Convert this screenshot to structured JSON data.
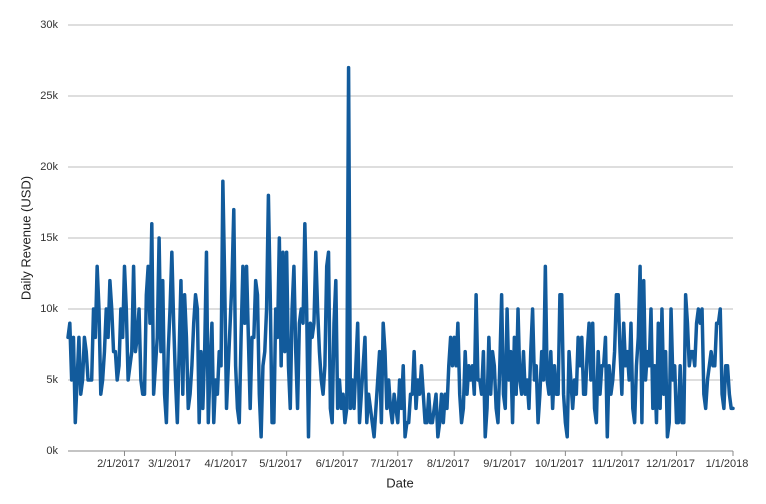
{
  "chart_data": {
    "type": "line",
    "x_label": "Date",
    "y_label": "Daily Revenue (USD)",
    "x": [
      "1/1/2017",
      "1/2/2017",
      "1/3/2017",
      "1/4/2017",
      "1/5/2017",
      "1/6/2017",
      "1/7/2017",
      "1/8/2017",
      "1/9/2017",
      "1/10/2017",
      "1/11/2017",
      "1/12/2017",
      "1/13/2017",
      "1/14/2017",
      "1/15/2017",
      "1/16/2017",
      "1/17/2017",
      "1/18/2017",
      "1/19/2017",
      "1/20/2017",
      "1/21/2017",
      "1/22/2017",
      "1/23/2017",
      "1/24/2017",
      "1/25/2017",
      "1/26/2017",
      "1/27/2017",
      "1/28/2017",
      "1/29/2017",
      "1/30/2017",
      "1/31/2017",
      "2/1/2017",
      "2/2/2017",
      "2/3/2017",
      "2/4/2017",
      "2/5/2017",
      "2/6/2017",
      "2/7/2017",
      "2/8/2017",
      "2/9/2017",
      "2/10/2017",
      "2/11/2017",
      "2/12/2017",
      "2/13/2017",
      "2/14/2017",
      "2/15/2017",
      "2/16/2017",
      "2/17/2017",
      "2/18/2017",
      "2/19/2017",
      "2/20/2017",
      "2/21/2017",
      "2/22/2017",
      "2/23/2017",
      "2/24/2017",
      "2/25/2017",
      "2/26/2017",
      "2/27/2017",
      "2/28/2017",
      "3/1/2017",
      "3/2/2017",
      "3/3/2017",
      "3/4/2017",
      "3/5/2017",
      "3/6/2017",
      "3/7/2017",
      "3/8/2017",
      "3/9/2017",
      "3/10/2017",
      "3/11/2017",
      "3/12/2017",
      "3/13/2017",
      "3/14/2017",
      "3/15/2017",
      "3/16/2017",
      "3/17/2017",
      "3/18/2017",
      "3/19/2017",
      "3/20/2017",
      "3/21/2017",
      "3/22/2017",
      "3/23/2017",
      "3/24/2017",
      "3/25/2017",
      "3/26/2017",
      "3/27/2017",
      "3/28/2017",
      "3/29/2017",
      "3/30/2017",
      "3/31/2017",
      "4/1/2017",
      "4/2/2017",
      "4/3/2017",
      "4/4/2017",
      "4/5/2017",
      "4/6/2017",
      "4/7/2017",
      "4/8/2017",
      "4/9/2017",
      "4/10/2017",
      "4/11/2017",
      "4/12/2017",
      "4/13/2017",
      "4/14/2017",
      "4/15/2017",
      "4/16/2017",
      "4/17/2017",
      "4/18/2017",
      "4/19/2017",
      "4/20/2017",
      "4/21/2017",
      "4/22/2017",
      "4/23/2017",
      "4/24/2017",
      "4/25/2017",
      "4/26/2017",
      "4/27/2017",
      "4/28/2017",
      "4/29/2017",
      "4/30/2017",
      "5/1/2017",
      "5/2/2017",
      "5/3/2017",
      "5/4/2017",
      "5/5/2017",
      "5/6/2017",
      "5/7/2017",
      "5/8/2017",
      "5/9/2017",
      "5/10/2017",
      "5/11/2017",
      "5/12/2017",
      "5/13/2017",
      "5/14/2017",
      "5/15/2017",
      "5/16/2017",
      "5/17/2017",
      "5/18/2017",
      "5/19/2017",
      "5/20/2017",
      "5/21/2017",
      "5/22/2017",
      "5/23/2017",
      "5/24/2017",
      "5/25/2017",
      "5/26/2017",
      "5/27/2017",
      "5/28/2017",
      "5/29/2017",
      "5/30/2017",
      "5/31/2017",
      "6/1/2017",
      "6/2/2017",
      "6/3/2017",
      "6/4/2017",
      "6/5/2017",
      "6/6/2017",
      "6/7/2017",
      "6/8/2017",
      "6/9/2017",
      "6/10/2017",
      "6/11/2017",
      "6/12/2017",
      "6/13/2017",
      "6/14/2017",
      "6/15/2017",
      "6/16/2017",
      "6/17/2017",
      "6/18/2017",
      "6/19/2017",
      "6/20/2017",
      "6/21/2017",
      "6/22/2017",
      "6/23/2017",
      "6/24/2017",
      "6/25/2017",
      "6/26/2017",
      "6/27/2017",
      "6/28/2017",
      "6/29/2017",
      "6/30/2017",
      "7/1/2017",
      "7/2/2017",
      "7/3/2017",
      "7/4/2017",
      "7/5/2017",
      "7/6/2017",
      "7/7/2017",
      "7/8/2017",
      "7/9/2017",
      "7/10/2017",
      "7/11/2017",
      "7/12/2017",
      "7/13/2017",
      "7/14/2017",
      "7/15/2017",
      "7/16/2017",
      "7/17/2017",
      "7/18/2017",
      "7/19/2017",
      "7/20/2017",
      "7/21/2017",
      "7/22/2017",
      "7/23/2017",
      "7/24/2017",
      "7/25/2017",
      "7/26/2017",
      "7/27/2017",
      "7/28/2017",
      "7/29/2017",
      "7/30/2017",
      "7/31/2017",
      "8/1/2017",
      "8/2/2017",
      "8/3/2017",
      "8/4/2017",
      "8/5/2017",
      "8/6/2017",
      "8/7/2017",
      "8/8/2017",
      "8/9/2017",
      "8/10/2017",
      "8/11/2017",
      "8/12/2017",
      "8/13/2017",
      "8/14/2017",
      "8/15/2017",
      "8/16/2017",
      "8/17/2017",
      "8/18/2017",
      "8/19/2017",
      "8/20/2017",
      "8/21/2017",
      "8/22/2017",
      "8/23/2017",
      "8/24/2017",
      "8/25/2017",
      "8/26/2017",
      "8/27/2017",
      "8/28/2017",
      "8/29/2017",
      "8/30/2017",
      "8/31/2017",
      "9/1/2017",
      "9/2/2017",
      "9/3/2017",
      "9/4/2017",
      "9/5/2017",
      "9/6/2017",
      "9/7/2017",
      "9/8/2017",
      "9/9/2017",
      "9/10/2017",
      "9/11/2017",
      "9/12/2017",
      "9/13/2017",
      "9/14/2017",
      "9/15/2017",
      "9/16/2017",
      "9/17/2017",
      "9/18/2017",
      "9/19/2017",
      "9/20/2017",
      "9/21/2017",
      "9/22/2017",
      "9/23/2017",
      "9/24/2017",
      "9/25/2017",
      "9/26/2017",
      "9/27/2017",
      "9/28/2017",
      "9/29/2017",
      "9/30/2017",
      "10/1/2017",
      "10/2/2017",
      "10/3/2017",
      "10/4/2017",
      "10/5/2017",
      "10/6/2017",
      "10/7/2017",
      "10/8/2017",
      "10/9/2017",
      "10/10/2017",
      "10/11/2017",
      "10/12/2017",
      "10/13/2017",
      "10/14/2017",
      "10/15/2017",
      "10/16/2017",
      "10/17/2017",
      "10/18/2017",
      "10/19/2017",
      "10/20/2017",
      "10/21/2017",
      "10/22/2017",
      "10/23/2017",
      "10/24/2017",
      "10/25/2017",
      "10/26/2017",
      "10/27/2017",
      "10/28/2017",
      "10/29/2017",
      "10/30/2017",
      "10/31/2017",
      "11/1/2017",
      "11/2/2017",
      "11/3/2017",
      "11/4/2017",
      "11/5/2017",
      "11/6/2017",
      "11/7/2017",
      "11/8/2017",
      "11/9/2017",
      "11/10/2017",
      "11/11/2017",
      "11/12/2017",
      "11/13/2017",
      "11/14/2017",
      "11/15/2017",
      "11/16/2017",
      "11/17/2017",
      "11/18/2017",
      "11/19/2017",
      "11/20/2017",
      "11/21/2017",
      "11/22/2017",
      "11/23/2017",
      "11/24/2017",
      "11/25/2017",
      "11/26/2017",
      "11/27/2017",
      "11/28/2017",
      "11/29/2017",
      "11/30/2017",
      "12/1/2017",
      "12/2/2017",
      "12/3/2017",
      "12/4/2017",
      "12/5/2017",
      "12/6/2017",
      "12/7/2017",
      "12/8/2017",
      "12/9/2017",
      "12/10/2017",
      "12/11/2017",
      "12/12/2017",
      "12/13/2017",
      "12/14/2017",
      "12/15/2017",
      "12/16/2017",
      "12/17/2017",
      "12/18/2017",
      "12/19/2017",
      "12/20/2017",
      "12/21/2017",
      "12/22/2017",
      "12/23/2017",
      "12/24/2017",
      "12/25/2017",
      "12/26/2017",
      "12/27/2017",
      "12/28/2017",
      "12/29/2017",
      "12/30/2017",
      "12/31/2017",
      "1/1/2018"
    ],
    "series": [
      {
        "color": "#125b9c",
        "values": [
          8000,
          9000,
          5000,
          8000,
          2000,
          5000,
          8000,
          4000,
          5000,
          8000,
          7000,
          5000,
          5000,
          5000,
          10000,
          8000,
          13000,
          10000,
          4000,
          5000,
          7000,
          10000,
          8000,
          12000,
          10000,
          7000,
          7000,
          5000,
          6000,
          10000,
          8000,
          13000,
          10000,
          5000,
          6000,
          7000,
          13000,
          7000,
          8000,
          10000,
          5000,
          4000,
          4000,
          11000,
          13000,
          9000,
          16000,
          4000,
          6000,
          8000,
          15000,
          7000,
          12000,
          4000,
          2000,
          7000,
          10000,
          14000,
          9000,
          5000,
          2000,
          7000,
          12000,
          4000,
          11000,
          8000,
          3000,
          4000,
          6000,
          9000,
          11000,
          10000,
          2000,
          7000,
          3000,
          7000,
          14000,
          2000,
          6000,
          9000,
          2000,
          5000,
          4000,
          7000,
          6000,
          19000,
          12000,
          3000,
          6000,
          9000,
          12000,
          17000,
          6000,
          3000,
          2000,
          8000,
          13000,
          9000,
          13000,
          8000,
          3000,
          8000,
          8000,
          12000,
          11000,
          4000,
          1000,
          6000,
          7000,
          10000,
          18000,
          11000,
          2000,
          2000,
          10000,
          8000,
          15000,
          6000,
          14000,
          7000,
          14000,
          6000,
          3000,
          10000,
          13000,
          7000,
          3000,
          9000,
          10000,
          9000,
          16000,
          10000,
          1000,
          9000,
          8000,
          9000,
          14000,
          10000,
          7000,
          5000,
          4000,
          6000,
          13000,
          14000,
          3000,
          2000,
          9000,
          12000,
          3000,
          5000,
          3000,
          4000,
          2000,
          3000,
          27000,
          3000,
          5000,
          3000,
          6000,
          9000,
          2000,
          4000,
          6000,
          8000,
          2000,
          4000,
          3000,
          2000,
          1000,
          3000,
          5000,
          7000,
          2000,
          9000,
          7000,
          3000,
          5000,
          3000,
          2000,
          4000,
          3000,
          2000,
          5000,
          3000,
          6000,
          1000,
          2000,
          2000,
          4000,
          4000,
          7000,
          3000,
          5000,
          4000,
          6000,
          4000,
          2000,
          2000,
          4000,
          2000,
          2000,
          3000,
          4000,
          1000,
          2000,
          4000,
          2000,
          4000,
          3000,
          6000,
          8000,
          6000,
          8000,
          6000,
          9000,
          4000,
          2000,
          3000,
          7000,
          4000,
          6000,
          5000,
          6000,
          4000,
          11000,
          5000,
          5000,
          4000,
          7000,
          1000,
          3000,
          8000,
          4000,
          7000,
          6000,
          3000,
          2000,
          6000,
          11000,
          4000,
          3000,
          10000,
          5000,
          7000,
          2000,
          8000,
          4000,
          10000,
          5000,
          4000,
          7000,
          4000,
          5000,
          3000,
          7000,
          10000,
          5000,
          6000,
          2000,
          4000,
          7000,
          5000,
          13000,
          5000,
          4000,
          7000,
          3000,
          6000,
          4000,
          4000,
          11000,
          11000,
          4000,
          2000,
          1000,
          7000,
          5000,
          3000,
          5000,
          4000,
          8000,
          6000,
          8000,
          4000,
          4000,
          7000,
          9000,
          5000,
          9000,
          3000,
          2000,
          7000,
          4000,
          6000,
          6000,
          8000,
          1000,
          6000,
          4000,
          5000,
          7000,
          11000,
          11000,
          7000,
          4000,
          9000,
          6000,
          7000,
          5000,
          9000,
          3000,
          2000,
          6000,
          8000,
          13000,
          2000,
          12000,
          5000,
          7000,
          6000,
          10000,
          3000,
          6000,
          2000,
          9000,
          3000,
          10000,
          4000,
          7000,
          1000,
          2000,
          10000,
          5000,
          6000,
          2000,
          2000,
          6000,
          2000,
          2000,
          11000,
          9000,
          6000,
          7000,
          7000,
          6000,
          9000,
          10000,
          9000,
          10000,
          4000,
          3000,
          5000,
          6000,
          7000,
          6000,
          6000,
          9000,
          9000,
          10000,
          4000,
          3000,
          6000,
          6000,
          4000,
          3000,
          3000
        ]
      }
    ],
    "xlim": [
      "1/1/2017",
      "1/1/2018"
    ],
    "xticks": [
      "2/1/2017",
      "3/1/2017",
      "4/1/2017",
      "5/1/2017",
      "6/1/2017",
      "7/1/2017",
      "8/1/2017",
      "9/1/2017",
      "10/1/2017",
      "11/1/2017",
      "12/1/2017",
      "1/1/2018"
    ],
    "ylim": [
      0,
      30000
    ],
    "yticks": [
      {
        "value": 0,
        "label": "0k"
      },
      {
        "value": 5000,
        "label": "5k"
      },
      {
        "value": 10000,
        "label": "10k"
      },
      {
        "value": 15000,
        "label": "15k"
      },
      {
        "value": 20000,
        "label": "20k"
      },
      {
        "value": 25000,
        "label": "25k"
      },
      {
        "value": 30000,
        "label": "30k"
      }
    ],
    "grid": true
  }
}
